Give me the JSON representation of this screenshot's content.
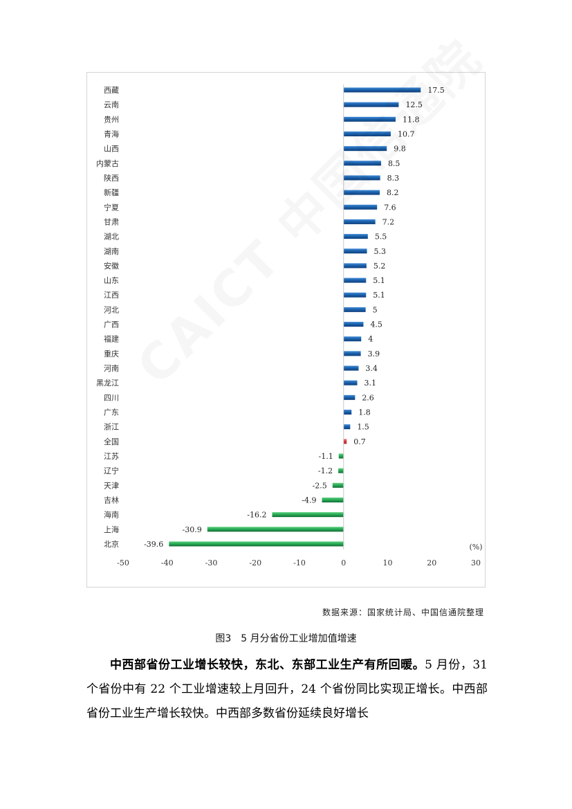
{
  "chart_data": {
    "type": "bar",
    "orientation": "horizontal",
    "categories": [
      "西藏",
      "云南",
      "贵州",
      "青海",
      "山西",
      "内蒙古",
      "陕西",
      "新疆",
      "宁夏",
      "甘肃",
      "湖北",
      "湖南",
      "安徽",
      "山东",
      "江西",
      "河北",
      "广西",
      "福建",
      "重庆",
      "河南",
      "黑龙江",
      "四川",
      "广东",
      "浙江",
      "全国",
      "江苏",
      "辽宁",
      "天津",
      "吉林",
      "海南",
      "上海",
      "北京"
    ],
    "values": [
      17.5,
      12.5,
      11.8,
      10.7,
      9.8,
      8.5,
      8.3,
      8.2,
      7.6,
      7.2,
      5.5,
      5.3,
      5.2,
      5.1,
      5.1,
      5,
      4.5,
      4,
      3.9,
      3.4,
      3.1,
      2.6,
      1.8,
      1.5,
      0.7,
      -1.1,
      -1.2,
      -2.5,
      -4.9,
      -16.2,
      -30.9,
      -39.6
    ],
    "value_labels": [
      "17.5",
      "12.5",
      "11.8",
      "10.7",
      "9.8",
      "8.5",
      "8.3",
      "8.2",
      "7.6",
      "7.2",
      "5.5",
      "5.3",
      "5.2",
      "5.1",
      "5.1",
      "5",
      "4.5",
      "4",
      "3.9",
      "3.4",
      "3.1",
      "2.6",
      "1.8",
      "1.5",
      "0.7",
      "-1.1",
      "-1.2",
      "-2.5",
      "-4.9",
      "-16.2",
      "-30.9",
      "-39.6"
    ],
    "xlim": [
      -50,
      30
    ],
    "xticks": [
      "-50",
      "-40",
      "-30",
      "-20",
      "-10",
      "0",
      "10",
      "20",
      "30"
    ],
    "unit_label": "(%)",
    "grid": false,
    "legend": "none",
    "colors": {
      "positive": "#1a5fa8",
      "national": "#d9343a",
      "negative": "#27a855"
    }
  },
  "watermark_text": "CAICT 中国信通院",
  "source_note": "数据来源：国家统计局、中国信通院整理",
  "figure_caption": "图3　5 月分省份工业增加值增速",
  "body": {
    "lead": "中西部省份工业增长较快，东北、东部工业生产有所回暖。",
    "text": "5 月份，31 个省份中有 22 个工业增速较上月回升，24 个省份同比实现正增长。中西部省份工业生产增长较快。中西部多数省份延续良好增长"
  }
}
